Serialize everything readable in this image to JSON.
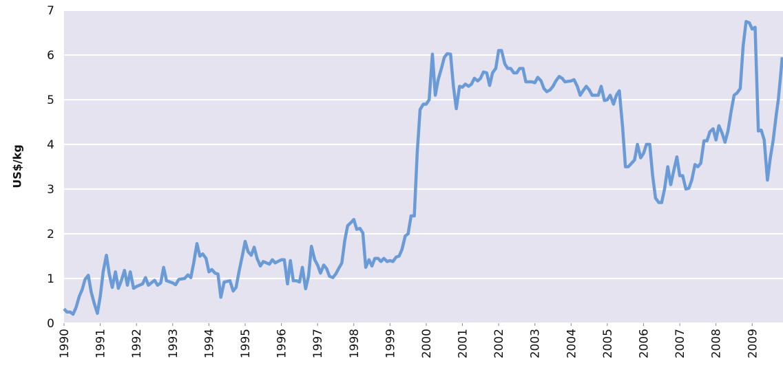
{
  "chart_data": {
    "type": "line",
    "y_label": "US$/kg",
    "xlim": [
      1990,
      2009.85
    ],
    "xticks": [
      1990,
      1991,
      1992,
      1993,
      1994,
      1995,
      1996,
      1997,
      1998,
      1999,
      2000,
      2001,
      2002,
      2003,
      2004,
      2005,
      2006,
      2007,
      2008,
      2009
    ],
    "ylim": [
      0,
      7
    ],
    "yticks": [
      0,
      1,
      2,
      3,
      4,
      5,
      6,
      7
    ],
    "grid": true,
    "background": "#e4e3ef",
    "series": [
      {
        "color": "#6a9bd6",
        "x": [
          1990.0,
          1990.08,
          1990.17,
          1990.25,
          1990.33,
          1990.42,
          1990.5,
          1990.58,
          1990.67,
          1990.75,
          1990.83,
          1990.92,
          1991.0,
          1991.08,
          1991.17,
          1991.25,
          1991.33,
          1991.42,
          1991.5,
          1991.58,
          1991.67,
          1991.75,
          1991.83,
          1991.92,
          1992.0,
          1992.17,
          1992.25,
          1992.33,
          1992.5,
          1992.58,
          1992.67,
          1992.75,
          1992.83,
          1993.0,
          1993.08,
          1993.17,
          1993.33,
          1993.42,
          1993.5,
          1993.58,
          1993.67,
          1993.75,
          1993.83,
          1993.92,
          1994.0,
          1994.08,
          1994.17,
          1994.25,
          1994.33,
          1994.42,
          1994.58,
          1994.67,
          1994.75,
          1994.83,
          1994.92,
          1995.0,
          1995.08,
          1995.17,
          1995.25,
          1995.33,
          1995.42,
          1995.5,
          1995.67,
          1995.75,
          1995.83,
          1996.0,
          1996.08,
          1996.17,
          1996.25,
          1996.33,
          1996.42,
          1996.5,
          1996.58,
          1996.67,
          1996.75,
          1996.83,
          1996.92,
          1997.0,
          1997.08,
          1997.17,
          1997.25,
          1997.33,
          1997.42,
          1997.5,
          1997.58,
          1997.67,
          1997.75,
          1997.83,
          1997.92,
          1998.0,
          1998.08,
          1998.17,
          1998.25,
          1998.33,
          1998.42,
          1998.5,
          1998.58,
          1998.67,
          1998.75,
          1998.83,
          1998.92,
          1999.0,
          1999.08,
          1999.17,
          1999.25,
          1999.33,
          1999.42,
          1999.5,
          1999.58,
          1999.67,
          1999.75,
          1999.83,
          1999.92,
          2000.0,
          2000.08,
          2000.17,
          2000.25,
          2000.33,
          2000.42,
          2000.5,
          2000.58,
          2000.67,
          2000.75,
          2000.83,
          2000.92,
          2001.0,
          2001.08,
          2001.17,
          2001.25,
          2001.33,
          2001.42,
          2001.5,
          2001.58,
          2001.67,
          2001.75,
          2001.83,
          2001.92,
          2002.0,
          2002.08,
          2002.17,
          2002.25,
          2002.33,
          2002.42,
          2002.5,
          2002.58,
          2002.67,
          2002.75,
          2002.92,
          2003.0,
          2003.08,
          2003.17,
          2003.25,
          2003.33,
          2003.42,
          2003.5,
          2003.58,
          2003.67,
          2003.75,
          2003.83,
          2004.0,
          2004.08,
          2004.17,
          2004.25,
          2004.33,
          2004.42,
          2004.5,
          2004.58,
          2004.75,
          2004.83,
          2004.92,
          2005.0,
          2005.08,
          2005.17,
          2005.25,
          2005.33,
          2005.42,
          2005.5,
          2005.58,
          2005.75,
          2005.83,
          2005.92,
          2006.0,
          2006.08,
          2006.17,
          2006.25,
          2006.33,
          2006.42,
          2006.5,
          2006.58,
          2006.67,
          2006.75,
          2006.83,
          2006.92,
          2007.0,
          2007.08,
          2007.17,
          2007.25,
          2007.33,
          2007.42,
          2007.5,
          2007.58,
          2007.67,
          2007.75,
          2007.83,
          2007.92,
          2008.0,
          2008.08,
          2008.17,
          2008.25,
          2008.33,
          2008.42,
          2008.5,
          2008.58,
          2008.67,
          2008.75,
          2008.83,
          2008.92,
          2009.0,
          2009.08,
          2009.17,
          2009.25,
          2009.33,
          2009.42,
          2009.5,
          2009.58,
          2009.67,
          2009.72,
          2009.78,
          2009.83
        ],
        "values": [
          0.32,
          0.25,
          0.25,
          0.2,
          0.35,
          0.6,
          0.75,
          0.98,
          1.07,
          0.7,
          0.45,
          0.22,
          0.6,
          1.15,
          1.52,
          1.1,
          0.8,
          1.15,
          0.78,
          0.95,
          1.18,
          0.85,
          1.15,
          0.78,
          0.82,
          0.88,
          1.02,
          0.85,
          0.96,
          0.85,
          0.9,
          1.25,
          0.95,
          0.9,
          0.86,
          0.98,
          1.0,
          1.08,
          1.02,
          1.35,
          1.78,
          1.5,
          1.55,
          1.45,
          1.15,
          1.2,
          1.12,
          1.1,
          0.58,
          0.92,
          0.95,
          0.72,
          0.8,
          1.15,
          1.5,
          1.83,
          1.6,
          1.52,
          1.7,
          1.45,
          1.28,
          1.38,
          1.32,
          1.42,
          1.35,
          1.42,
          1.42,
          0.88,
          1.4,
          0.95,
          0.95,
          0.92,
          1.25,
          0.77,
          1.05,
          1.72,
          1.42,
          1.3,
          1.12,
          1.3,
          1.22,
          1.05,
          1.02,
          1.1,
          1.22,
          1.35,
          1.85,
          2.18,
          2.25,
          2.32,
          2.1,
          2.12,
          2.02,
          1.25,
          1.42,
          1.28,
          1.45,
          1.45,
          1.38,
          1.45,
          1.38,
          1.4,
          1.38,
          1.48,
          1.5,
          1.65,
          1.95,
          2.0,
          2.4,
          2.4,
          3.8,
          4.78,
          4.9,
          4.9,
          5.0,
          6.02,
          5.1,
          5.45,
          5.7,
          5.95,
          6.03,
          6.02,
          5.3,
          4.8,
          5.3,
          5.28,
          5.35,
          5.3,
          5.35,
          5.48,
          5.42,
          5.48,
          5.62,
          5.6,
          5.32,
          5.6,
          5.7,
          6.1,
          6.1,
          5.8,
          5.7,
          5.7,
          5.6,
          5.6,
          5.7,
          5.7,
          5.4,
          5.4,
          5.38,
          5.5,
          5.42,
          5.25,
          5.18,
          5.22,
          5.3,
          5.42,
          5.52,
          5.48,
          5.4,
          5.42,
          5.45,
          5.3,
          5.1,
          5.2,
          5.3,
          5.22,
          5.1,
          5.1,
          5.3,
          4.98,
          5.0,
          5.1,
          4.9,
          5.1,
          5.2,
          4.4,
          3.5,
          3.5,
          3.65,
          4.0,
          3.7,
          3.8,
          4.0,
          4.0,
          3.3,
          2.8,
          2.7,
          2.7,
          3.0,
          3.5,
          3.1,
          3.4,
          3.72,
          3.3,
          3.3,
          3.0,
          3.02,
          3.2,
          3.55,
          3.5,
          3.58,
          4.08,
          4.08,
          4.28,
          4.35,
          4.1,
          4.42,
          4.25,
          4.05,
          4.3,
          4.75,
          5.1,
          5.15,
          5.25,
          6.2,
          6.75,
          6.72,
          6.58,
          6.62,
          4.3,
          4.32,
          4.1,
          3.2,
          3.7,
          4.1,
          4.7,
          5.0,
          5.5,
          5.95
        ]
      }
    ]
  }
}
